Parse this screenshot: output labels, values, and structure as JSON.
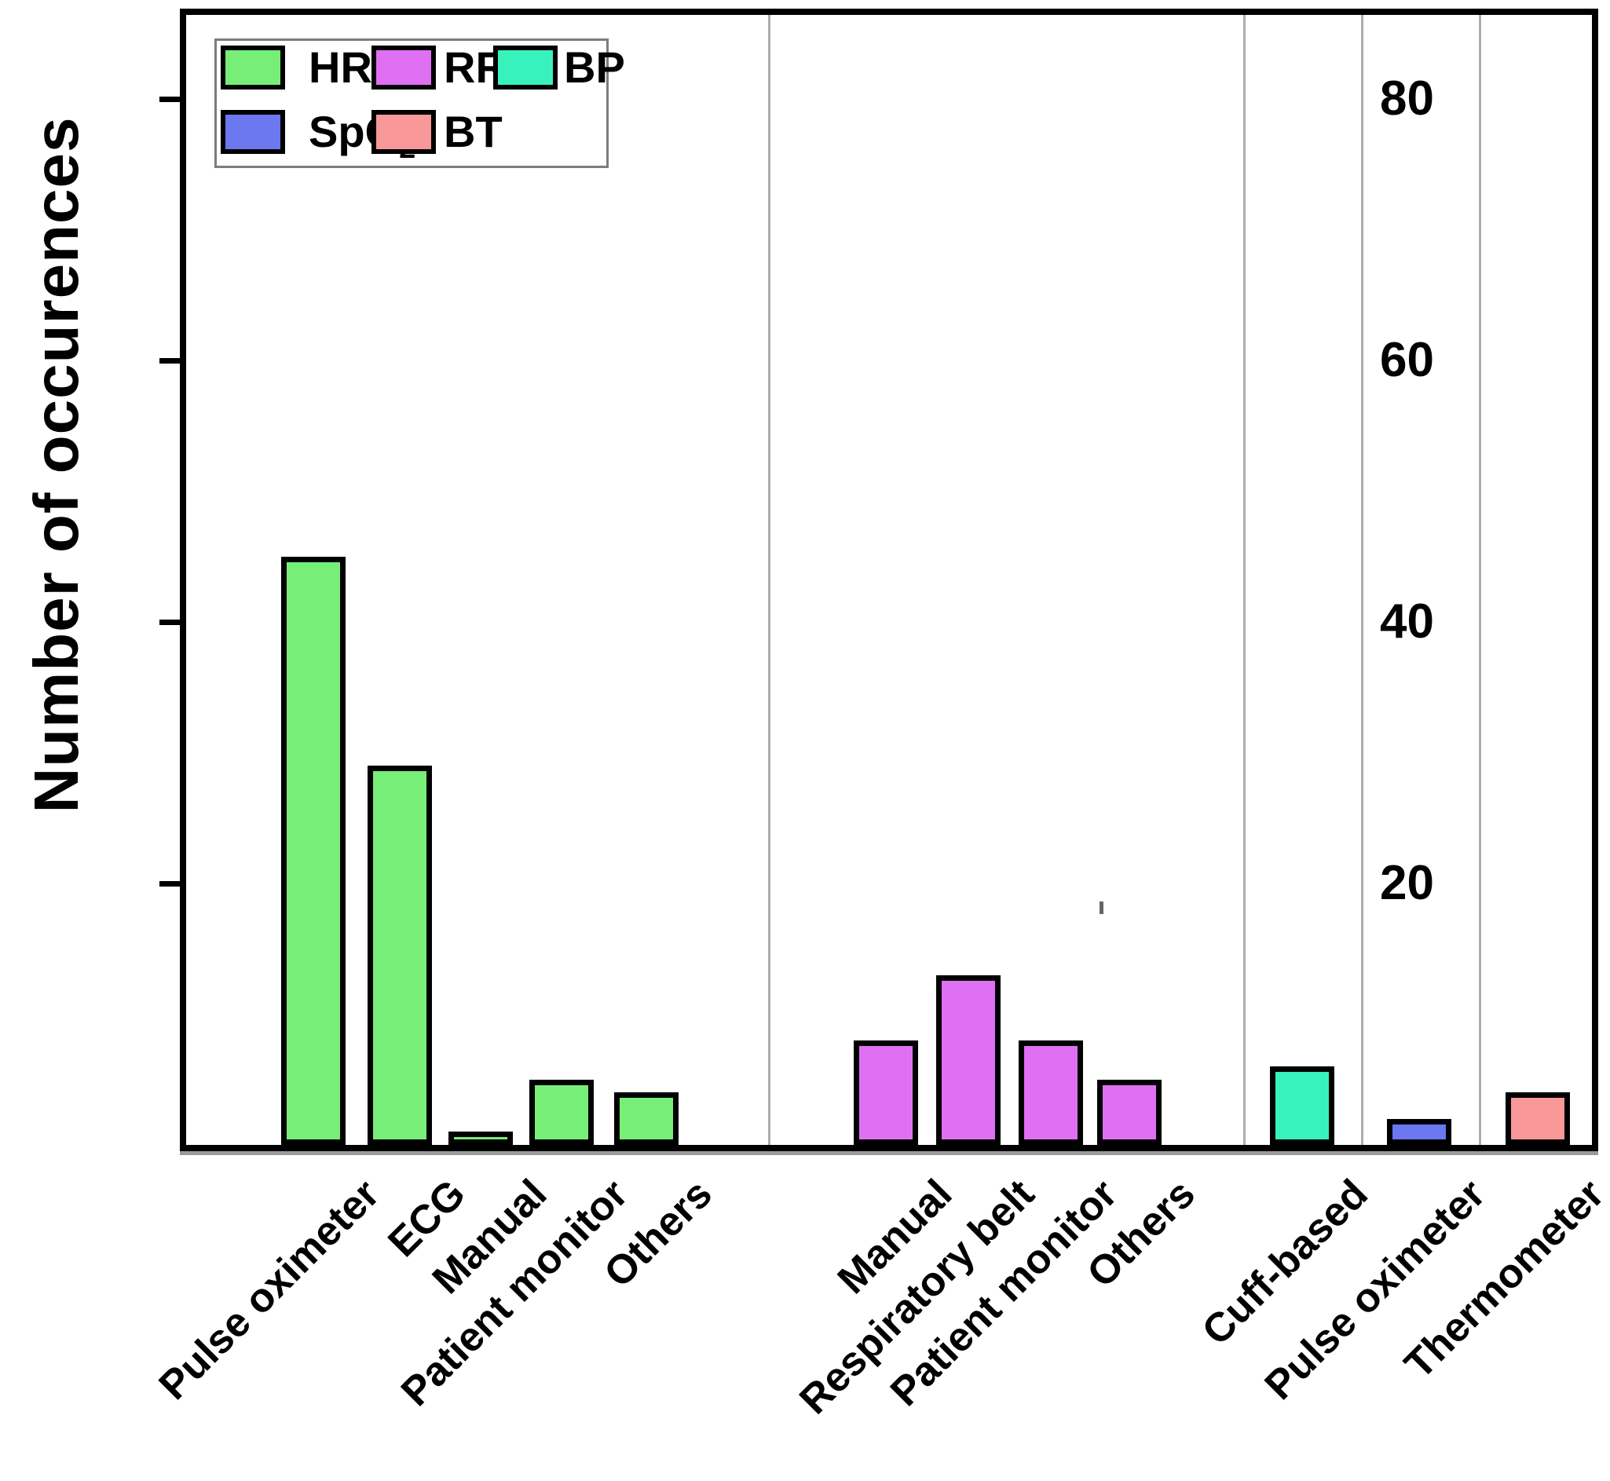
{
  "figure": {
    "background": "#ffffff",
    "frame_color": "#000000",
    "separator_color": "#aeaeae"
  },
  "chart_data": {
    "type": "bar",
    "title": "",
    "xlabel": "",
    "ylabel": "Number of occurences",
    "ylim": [
      0,
      87
    ],
    "yticks": [
      20,
      40,
      60,
      80
    ],
    "grid": false,
    "legend_position": "top-left",
    "legend": [
      {
        "label": "HR",
        "color": "#77EE77"
      },
      {
        "label": "RR",
        "color": "#E070F3"
      },
      {
        "label": "BP",
        "color": "#38F2BE"
      },
      {
        "label": "SpO",
        "sub": "2",
        "color": "#6B78EF"
      },
      {
        "label": "BT",
        "color": "#F89898"
      }
    ],
    "series": [
      {
        "name": "HR",
        "color": "#77EE77",
        "bars": [
          {
            "category": "Pulse oximeter",
            "value": 45
          },
          {
            "category": "ECG",
            "value": 29
          },
          {
            "category": "Manual",
            "value": 1
          },
          {
            "category": "Patient monitor",
            "value": 5
          },
          {
            "category": "Others",
            "value": 4
          }
        ]
      },
      {
        "name": "RR",
        "color": "#E070F3",
        "bars": [
          {
            "category": "Manual",
            "value": 8
          },
          {
            "category": "Respiratory belt",
            "value": 13
          },
          {
            "category": "Patient monitor",
            "value": 8
          },
          {
            "category": "Others",
            "value": 5
          }
        ]
      },
      {
        "name": "BP",
        "color": "#38F2BE",
        "bars": [
          {
            "category": "Cuff-based",
            "value": 6
          }
        ]
      },
      {
        "name": "SpO2",
        "color": "#6B78EF",
        "bars": [
          {
            "category": "Pulse oximeter",
            "value": 2
          }
        ]
      },
      {
        "name": "BT",
        "color": "#F89898",
        "bars": [
          {
            "category": "Thermometer",
            "value": 4
          }
        ]
      }
    ]
  }
}
